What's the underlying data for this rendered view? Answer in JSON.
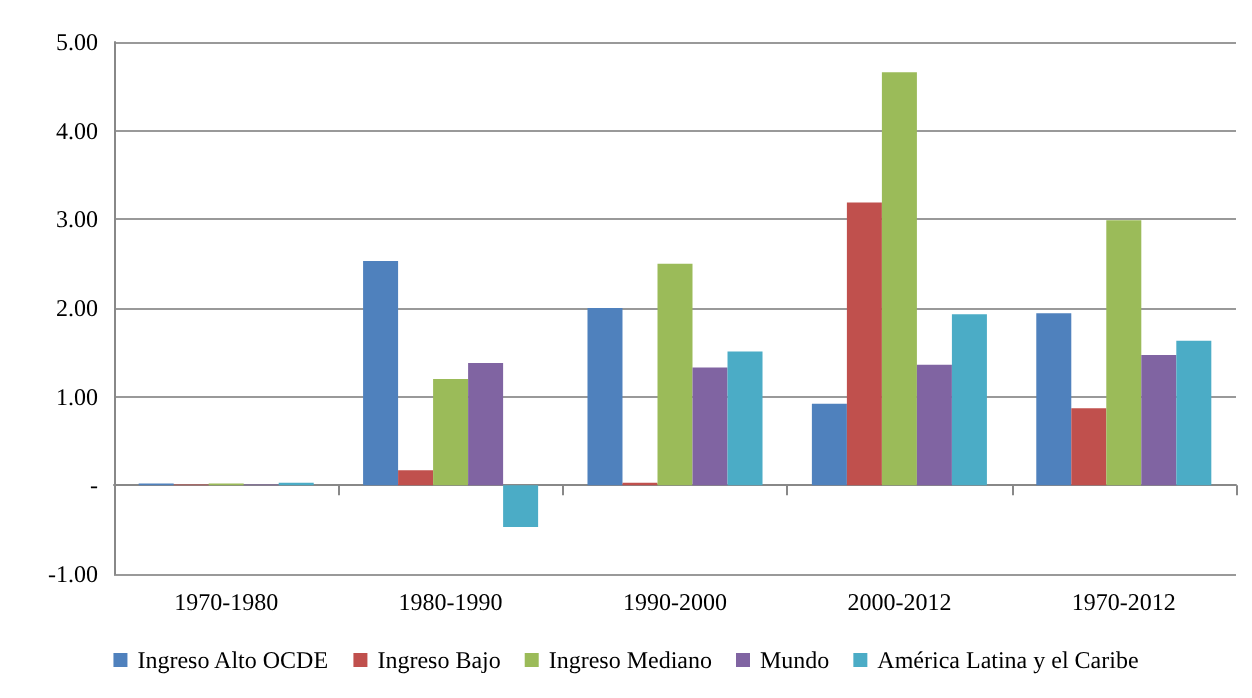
{
  "chart_data": {
    "type": "bar",
    "categories": [
      "1970-1980",
      "1980-1990",
      "1990-2000",
      "2000-2012",
      "1970-2012"
    ],
    "series": [
      {
        "name": "Ingreso Alto OCDE",
        "color": "#4f81bd",
        "values": [
          0.02,
          2.53,
          2.0,
          0.92,
          1.94
        ]
      },
      {
        "name": "Ingreso Bajo",
        "color": "#c0504d",
        "values": [
          0.01,
          0.17,
          0.03,
          3.19,
          0.87
        ]
      },
      {
        "name": "Ingreso Mediano",
        "color": "#9bbb59",
        "values": [
          0.02,
          1.2,
          2.5,
          4.66,
          2.99
        ]
      },
      {
        "name": "Mundo",
        "color": "#8064a2",
        "values": [
          0.01,
          1.38,
          1.33,
          1.36,
          1.47
        ]
      },
      {
        "name": "América Latina y el Caribe",
        "color": "#4bacc6",
        "values": [
          0.03,
          -0.47,
          1.51,
          1.93,
          1.63
        ]
      }
    ],
    "ylim": [
      -1,
      5
    ],
    "yticks": [
      {
        "value": -1,
        "label": "-1.00"
      },
      {
        "value": 0,
        "label": "-"
      },
      {
        "value": 1,
        "label": "1.00"
      },
      {
        "value": 2,
        "label": "2.00"
      },
      {
        "value": 3,
        "label": "3.00"
      },
      {
        "value": 4,
        "label": "4.00"
      },
      {
        "value": 5,
        "label": "5.00"
      }
    ],
    "grid": "y",
    "legend": "bottom"
  }
}
